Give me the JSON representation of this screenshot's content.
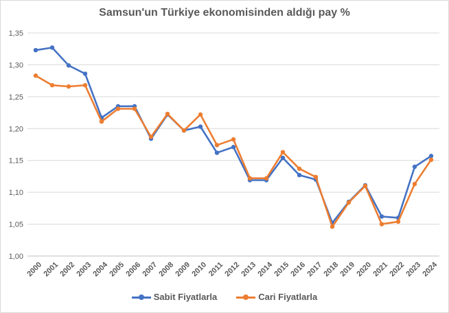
{
  "chart_data": {
    "type": "line",
    "title": "Samsun'un Türkiye ekonomisinden aldığı pay %",
    "xlabel": "",
    "ylabel": "",
    "x": [
      "2000",
      "2001",
      "2002",
      "2003",
      "2004",
      "2005",
      "2006",
      "2007",
      "2008",
      "2009",
      "2010",
      "2011",
      "2012",
      "2013",
      "2014",
      "2015",
      "2016",
      "2017",
      "2018",
      "2019",
      "2020",
      "2021",
      "2022",
      "2023",
      "2024"
    ],
    "ylim": [
      1.0,
      1.35
    ],
    "yticks": [
      "1,00",
      "1,05",
      "1,10",
      "1,15",
      "1,20",
      "1,25",
      "1,30",
      "1,35"
    ],
    "grid": true,
    "legend_position": "bottom",
    "series": [
      {
        "name": "Sabit Fiyatlarla",
        "color": "#4472c4",
        "values": [
          1.323,
          1.327,
          1.299,
          1.286,
          1.217,
          1.235,
          1.235,
          1.184,
          1.222,
          1.197,
          1.203,
          1.162,
          1.171,
          1.119,
          1.119,
          1.154,
          1.127,
          1.12,
          1.052,
          1.085,
          1.111,
          1.062,
          1.06,
          1.14,
          1.157
        ]
      },
      {
        "name": "Cari Fiyatlarla",
        "color": "#ed7d31",
        "values": [
          1.283,
          1.268,
          1.266,
          1.268,
          1.211,
          1.231,
          1.231,
          1.187,
          1.223,
          1.197,
          1.222,
          1.174,
          1.183,
          1.122,
          1.122,
          1.163,
          1.137,
          1.124,
          1.046,
          1.084,
          1.11,
          1.05,
          1.054,
          1.113,
          1.151
        ]
      }
    ]
  }
}
